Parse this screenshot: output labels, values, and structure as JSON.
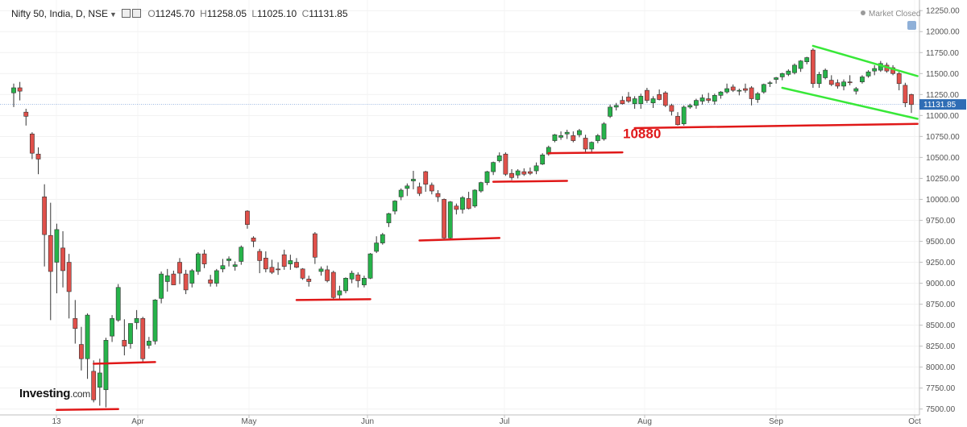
{
  "header": {
    "symbol": "Nifty 50, India, D, NSE",
    "open_label": "O",
    "open": "11245.70",
    "high_label": "H",
    "high": "11258.05",
    "low_label": "L",
    "low": "11025.10",
    "close_label": "C",
    "close": "11131.85"
  },
  "status": "Market Closed",
  "logo": {
    "main": "Investing",
    "suffix": ".com"
  },
  "chart_data": {
    "type": "candlestick",
    "title": "",
    "x_tick_labels": [
      "13",
      "Apr",
      "May",
      "Jun",
      "Jul",
      "Aug",
      "Sep",
      "Oct"
    ],
    "y_tick_labels": [
      "12250.00",
      "12000.00",
      "11750.00",
      "11500.00",
      "11250.00",
      "11000.00",
      "10750.00",
      "10500.00",
      "10250.00",
      "10000.00",
      "9750.00",
      "9500.00",
      "9250.00",
      "9000.00",
      "8750.00",
      "8500.00",
      "8250.00",
      "8000.00",
      "7750.00",
      "7500.00"
    ],
    "ylim": [
      7430,
      12300
    ],
    "last_price": "11131.85",
    "up_color": "#26b34a",
    "down_color": "#e0504a",
    "candles": [
      [
        11270,
        11380,
        11100,
        11330
      ],
      [
        11330,
        11400,
        11180,
        11290
      ],
      [
        11040,
        11080,
        10880,
        10990
      ],
      [
        10780,
        10800,
        10480,
        10550
      ],
      [
        10540,
        10620,
        10300,
        10480
      ],
      [
        10030,
        10180,
        9200,
        9580
      ],
      [
        9570,
        9960,
        8560,
        9140
      ],
      [
        9250,
        9710,
        8880,
        9640
      ],
      [
        9420,
        9620,
        8950,
        9150
      ],
      [
        9250,
        9350,
        8580,
        8900
      ],
      [
        8580,
        8800,
        8280,
        8460
      ],
      [
        8270,
        8480,
        7960,
        8100
      ],
      [
        8100,
        8640,
        7860,
        8620
      ],
      [
        7950,
        8080,
        7580,
        7610
      ],
      [
        7760,
        8100,
        7540,
        7930
      ],
      [
        7730,
        8350,
        7520,
        8320
      ],
      [
        8370,
        8620,
        8300,
        8580
      ],
      [
        8560,
        8990,
        8540,
        8950
      ],
      [
        8320,
        8570,
        8140,
        8250
      ],
      [
        8280,
        8510,
        8220,
        8520
      ],
      [
        8530,
        8680,
        8450,
        8580
      ],
      [
        8580,
        8600,
        8060,
        8100
      ],
      [
        8260,
        8360,
        8220,
        8310
      ],
      [
        8310,
        8810,
        8270,
        8800
      ],
      [
        8820,
        9140,
        8760,
        9110
      ],
      [
        9020,
        9170,
        8900,
        9090
      ],
      [
        9110,
        9150,
        8990,
        8980
      ],
      [
        9250,
        9300,
        8990,
        9120
      ],
      [
        9110,
        9160,
        8870,
        8920
      ],
      [
        9000,
        9170,
        8950,
        9150
      ],
      [
        9140,
        9370,
        9100,
        9350
      ],
      [
        9350,
        9400,
        9180,
        9230
      ],
      [
        9040,
        9100,
        8960,
        9000
      ],
      [
        9000,
        9170,
        8960,
        9150
      ],
      [
        9170,
        9290,
        9130,
        9210
      ],
      [
        9270,
        9320,
        9200,
        9290
      ],
      [
        9200,
        9260,
        9150,
        9220
      ],
      [
        9260,
        9450,
        9220,
        9430
      ],
      [
        9860,
        9870,
        9650,
        9700
      ],
      [
        9540,
        9560,
        9430,
        9500
      ],
      [
        9380,
        9410,
        9120,
        9270
      ],
      [
        9300,
        9380,
        9130,
        9170
      ],
      [
        9190,
        9280,
        9110,
        9130
      ],
      [
        9170,
        9250,
        9100,
        9160
      ],
      [
        9340,
        9400,
        9160,
        9200
      ],
      [
        9230,
        9340,
        9160,
        9270
      ],
      [
        9250,
        9300,
        9180,
        9190
      ],
      [
        9170,
        9180,
        9040,
        9060
      ],
      [
        9050,
        9090,
        8960,
        9020
      ],
      [
        9590,
        9610,
        9230,
        9310
      ],
      [
        9140,
        9200,
        9090,
        9170
      ],
      [
        9160,
        9210,
        9010,
        9030
      ],
      [
        9130,
        9150,
        8810,
        8830
      ],
      [
        8860,
        8970,
        8810,
        8910
      ],
      [
        8910,
        9070,
        8880,
        9060
      ],
      [
        9050,
        9150,
        9000,
        9120
      ],
      [
        9100,
        9130,
        8950,
        9030
      ],
      [
        8980,
        9090,
        8950,
        9060
      ],
      [
        9060,
        9360,
        9050,
        9350
      ],
      [
        9380,
        9560,
        9360,
        9480
      ],
      [
        9480,
        9600,
        9460,
        9580
      ],
      [
        9720,
        9840,
        9670,
        9830
      ],
      [
        9860,
        9990,
        9820,
        9980
      ],
      [
        10030,
        10130,
        9990,
        10110
      ],
      [
        10130,
        10190,
        10040,
        10160
      ],
      [
        10220,
        10340,
        10120,
        10240
      ],
      [
        10150,
        10200,
        10040,
        10070
      ],
      [
        10330,
        10340,
        10090,
        10180
      ],
      [
        10170,
        10200,
        10060,
        10100
      ],
      [
        10070,
        10110,
        9970,
        10030
      ],
      [
        10000,
        10010,
        9530,
        9540
      ],
      [
        9540,
        9980,
        9530,
        9970
      ],
      [
        9920,
        9950,
        9820,
        9880
      ],
      [
        9880,
        10040,
        9830,
        10020
      ],
      [
        10010,
        10090,
        9880,
        9890
      ],
      [
        9920,
        10120,
        9900,
        10110
      ],
      [
        10100,
        10210,
        10080,
        10200
      ],
      [
        10200,
        10340,
        10170,
        10330
      ],
      [
        10330,
        10450,
        10290,
        10440
      ],
      [
        10460,
        10560,
        10440,
        10520
      ],
      [
        10540,
        10560,
        10280,
        10300
      ],
      [
        10310,
        10360,
        10230,
        10260
      ],
      [
        10290,
        10360,
        10250,
        10340
      ],
      [
        10330,
        10370,
        10280,
        10300
      ],
      [
        10330,
        10380,
        10290,
        10310
      ],
      [
        10340,
        10440,
        10300,
        10400
      ],
      [
        10420,
        10550,
        10410,
        10530
      ],
      [
        10540,
        10640,
        10520,
        10620
      ],
      [
        10700,
        10780,
        10680,
        10770
      ],
      [
        10740,
        10810,
        10710,
        10760
      ],
      [
        10780,
        10830,
        10720,
        10800
      ],
      [
        10760,
        10810,
        10680,
        10700
      ],
      [
        10770,
        10840,
        10740,
        10820
      ],
      [
        10730,
        10770,
        10550,
        10600
      ],
      [
        10600,
        10690,
        10560,
        10680
      ],
      [
        10700,
        10780,
        10670,
        10760
      ],
      [
        10720,
        10920,
        10700,
        10900
      ],
      [
        10990,
        11130,
        10970,
        11100
      ],
      [
        11100,
        11150,
        11060,
        11120
      ],
      [
        11180,
        11230,
        11130,
        11140
      ],
      [
        11220,
        11280,
        11150,
        11170
      ],
      [
        11140,
        11230,
        11080,
        11200
      ],
      [
        11140,
        11260,
        11080,
        11230
      ],
      [
        11300,
        11330,
        11150,
        11180
      ],
      [
        11150,
        11230,
        11090,
        11200
      ],
      [
        11250,
        11310,
        11180,
        11190
      ],
      [
        11270,
        11290,
        11100,
        11120
      ],
      [
        11120,
        11140,
        11000,
        11050
      ],
      [
        10990,
        11040,
        10880,
        10890
      ],
      [
        10900,
        11120,
        10880,
        11100
      ],
      [
        11100,
        11140,
        11080,
        11120
      ],
      [
        11120,
        11200,
        11080,
        11180
      ],
      [
        11170,
        11250,
        11130,
        11210
      ],
      [
        11200,
        11270,
        11150,
        11180
      ],
      [
        11170,
        11260,
        11130,
        11240
      ],
      [
        11240,
        11290,
        11200,
        11280
      ],
      [
        11280,
        11380,
        11260,
        11320
      ],
      [
        11340,
        11370,
        11280,
        11300
      ],
      [
        11290,
        11320,
        11240,
        11300
      ],
      [
        11320,
        11380,
        11270,
        11300
      ],
      [
        11330,
        11350,
        11120,
        11200
      ],
      [
        11190,
        11280,
        11150,
        11260
      ],
      [
        11280,
        11380,
        11260,
        11370
      ],
      [
        11380,
        11410,
        11340,
        11390
      ],
      [
        11430,
        11460,
        11380,
        11450
      ],
      [
        11460,
        11510,
        11420,
        11500
      ],
      [
        11490,
        11550,
        11470,
        11530
      ],
      [
        11510,
        11620,
        11490,
        11600
      ],
      [
        11560,
        11660,
        11520,
        11650
      ],
      [
        11640,
        11700,
        11610,
        11690
      ],
      [
        11780,
        11800,
        11330,
        11380
      ],
      [
        11380,
        11520,
        11330,
        11490
      ],
      [
        11450,
        11560,
        11430,
        11540
      ],
      [
        11420,
        11480,
        11350,
        11370
      ],
      [
        11390,
        11430,
        11320,
        11350
      ],
      [
        11350,
        11430,
        11300,
        11400
      ],
      [
        11400,
        11480,
        11360,
        11390
      ],
      [
        11290,
        11340,
        11250,
        11320
      ],
      [
        11400,
        11480,
        11380,
        11460
      ],
      [
        11470,
        11540,
        11450,
        11520
      ],
      [
        11530,
        11600,
        11480,
        11560
      ],
      [
        11540,
        11650,
        11520,
        11620
      ],
      [
        11600,
        11630,
        11510,
        11530
      ],
      [
        11570,
        11600,
        11480,
        11500
      ],
      [
        11500,
        11520,
        11300,
        11380
      ],
      [
        11360,
        11390,
        11100,
        11150
      ],
      [
        11250,
        11260,
        11030,
        11130
      ]
    ],
    "annotations": [
      {
        "type": "text",
        "text": "10880",
        "color": "#e0191b"
      }
    ],
    "support_lines": [
      {
        "color": "#e01818",
        "y1": 7490,
        "y2": 7500,
        "from": 7,
        "to": 17
      },
      {
        "color": "#e01818",
        "y1": 8040,
        "y2": 8060,
        "from": 13,
        "to": 23
      },
      {
        "color": "#e01818",
        "y1": 8800,
        "y2": 8810,
        "from": 46,
        "to": 58
      },
      {
        "color": "#e01818",
        "y1": 9510,
        "y2": 9540,
        "from": 66,
        "to": 79
      },
      {
        "color": "#e01818",
        "y1": 10210,
        "y2": 10220,
        "from": 78,
        "to": 90
      },
      {
        "color": "#e01818",
        "y1": 10550,
        "y2": 10560,
        "from": 87,
        "to": 99
      },
      {
        "color": "#e01818",
        "y1": 10850,
        "y2": 10900,
        "from": 101,
        "to": 147
      },
      {
        "color": "#38e838",
        "y1": 11830,
        "y2": 11470,
        "from": 130,
        "to": 147
      },
      {
        "color": "#38e838",
        "y1": 11330,
        "y2": 10960,
        "from": 125,
        "to": 147
      }
    ]
  }
}
